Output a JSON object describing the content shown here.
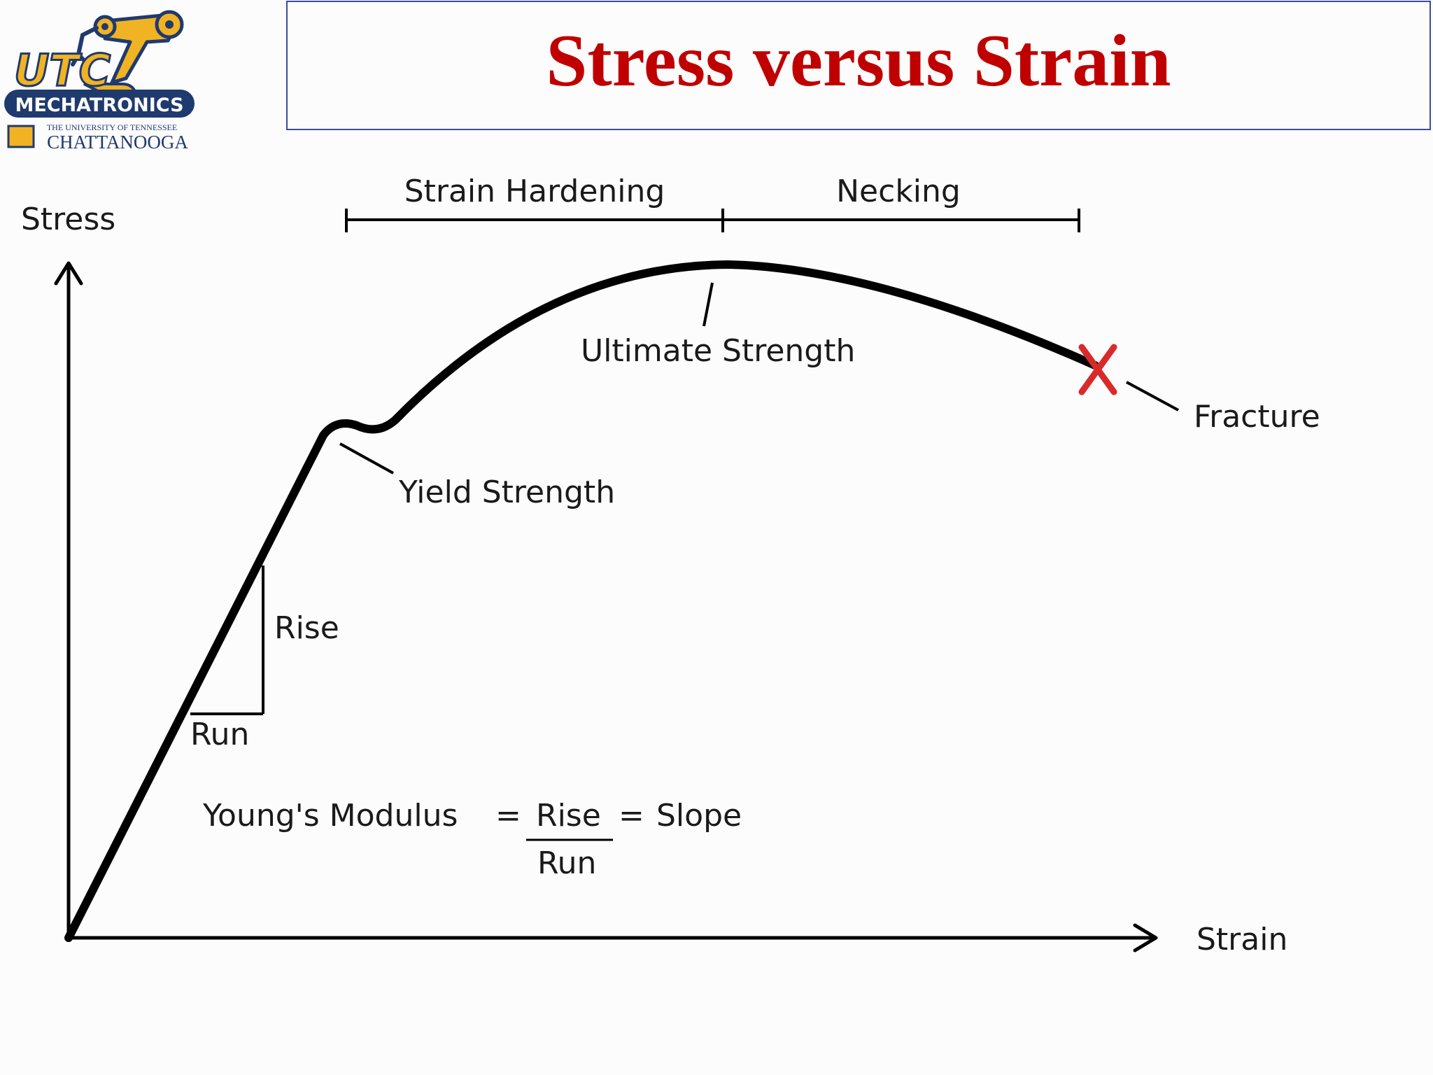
{
  "header": {
    "title": "Stress versus Strain"
  },
  "logo": {
    "brand": "UTC",
    "name": "MECHATRONICS",
    "university_line": "THE UNIVERSITY OF TENNESSEE",
    "campus": "CHATTANOOGA",
    "colors": {
      "navy": "#1f3a6e",
      "gold": "#f0b323"
    }
  },
  "diagram": {
    "axes": {
      "y_label": "Stress",
      "x_label": "Strain"
    },
    "regions": [
      {
        "label": "Strain Hardening"
      },
      {
        "label": "Necking"
      }
    ],
    "annotations": {
      "ultimate_strength": "Ultimate Strength",
      "yield_strength": "Yield Strength",
      "fracture": "Fracture",
      "rise": "Rise",
      "run": "Run"
    },
    "formula": {
      "lhs": "Young's Modulus",
      "eq1": "=",
      "numerator": "Rise",
      "denominator": "Run",
      "eq2": "=",
      "rhs": "Slope"
    },
    "colors": {
      "curve": "#000000",
      "fracture_mark": "#d92a2a"
    }
  }
}
